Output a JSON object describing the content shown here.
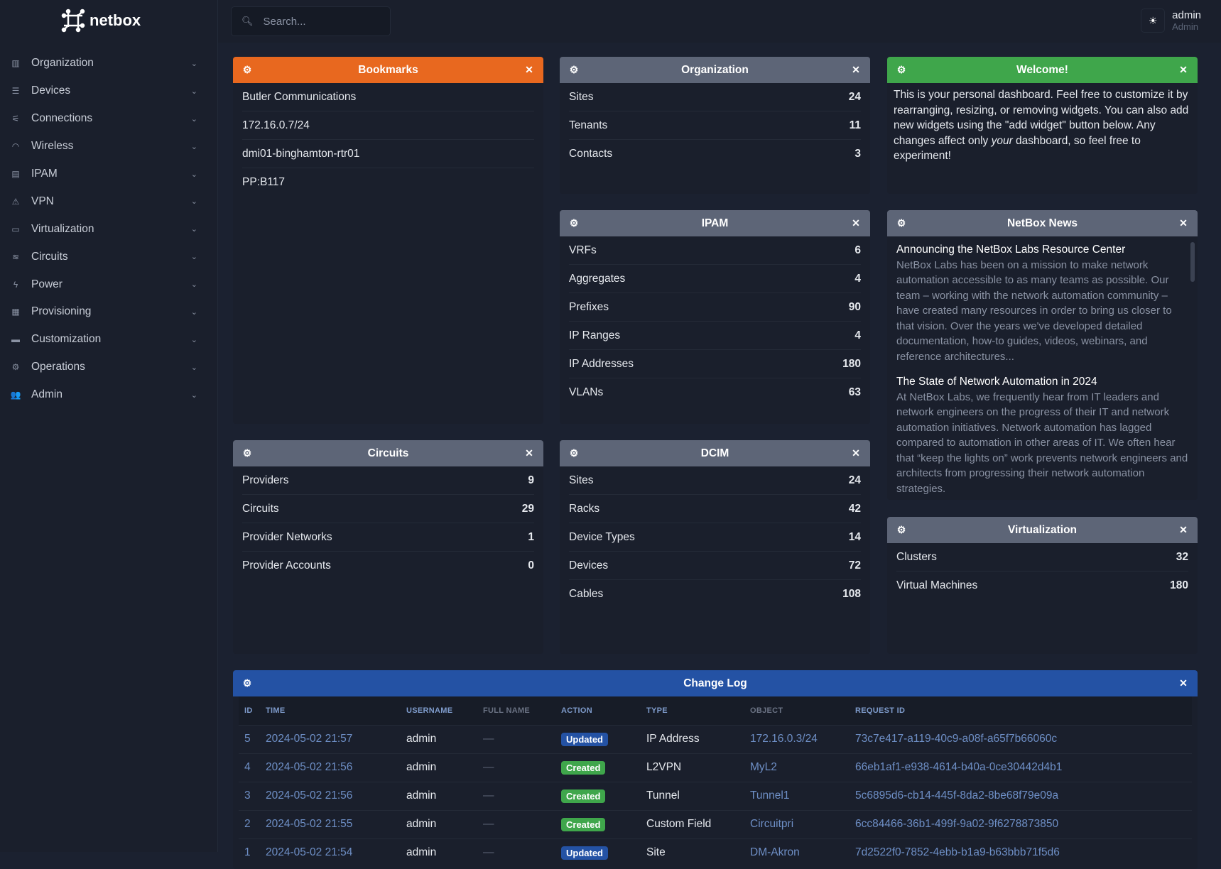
{
  "brand": {
    "name": "netbox"
  },
  "search": {
    "placeholder": "Search..."
  },
  "user": {
    "name": "admin",
    "role": "Admin"
  },
  "sidebar": {
    "items": [
      {
        "label": "Organization",
        "icon": "building-icon"
      },
      {
        "label": "Devices",
        "icon": "server-icon"
      },
      {
        "label": "Connections",
        "icon": "plug-icon"
      },
      {
        "label": "Wireless",
        "icon": "wifi-icon"
      },
      {
        "label": "IPAM",
        "icon": "counter-icon"
      },
      {
        "label": "VPN",
        "icon": "tunnel-icon"
      },
      {
        "label": "Virtualization",
        "icon": "monitor-icon"
      },
      {
        "label": "Circuits",
        "icon": "circuit-icon"
      },
      {
        "label": "Power",
        "icon": "flash-icon"
      },
      {
        "label": "Provisioning",
        "icon": "file-icon"
      },
      {
        "label": "Customization",
        "icon": "toolbox-icon"
      },
      {
        "label": "Operations",
        "icon": "cogs-icon"
      },
      {
        "label": "Admin",
        "icon": "users-icon"
      }
    ]
  },
  "widgets": {
    "bookmarks": {
      "title": "Bookmarks",
      "color": "#e8681f",
      "items": [
        "Butler Communications",
        "172.16.0.7/24",
        "dmi01-binghamton-rtr01",
        "PP:B117"
      ]
    },
    "organization": {
      "title": "Organization",
      "rows": [
        {
          "label": "Sites",
          "value": "24"
        },
        {
          "label": "Tenants",
          "value": "11"
        },
        {
          "label": "Contacts",
          "value": "3"
        }
      ]
    },
    "welcome": {
      "title": "Welcome!",
      "color": "#3fa64b",
      "text_before": "This is your personal dashboard. Feel free to customize it by rearranging, resizing, or removing widgets. You can also add new widgets using the \"add widget\" button below. Any changes affect only ",
      "text_em": "your",
      "text_after": " dashboard, so feel free to experiment!"
    },
    "ipam": {
      "title": "IPAM",
      "rows": [
        {
          "label": "VRFs",
          "value": "6"
        },
        {
          "label": "Aggregates",
          "value": "4"
        },
        {
          "label": "Prefixes",
          "value": "90"
        },
        {
          "label": "IP Ranges",
          "value": "4"
        },
        {
          "label": "IP Addresses",
          "value": "180"
        },
        {
          "label": "VLANs",
          "value": "63"
        }
      ]
    },
    "news": {
      "title": "NetBox News",
      "items": [
        {
          "title": "Announcing the NetBox Labs Resource Center",
          "body": "NetBox Labs has been on a mission to make network automation accessible to as many teams as possible. Our team – working with the network automation community – have created many resources in order to bring us closer to that vision. Over the years we've developed detailed documentation, how-to guides, videos, webinars, and reference architectures..."
        },
        {
          "title": "The State of Network Automation in 2024",
          "body": "At NetBox Labs, we frequently hear from IT leaders and network engineers on the progress of their IT and network automation initiatives. Network automation has lagged compared to automation in other areas of IT. We often hear that “keep the lights on” work prevents network engineers and architects from progressing their network automation strategies."
        }
      ]
    },
    "circuits": {
      "title": "Circuits",
      "rows": [
        {
          "label": "Providers",
          "value": "9"
        },
        {
          "label": "Circuits",
          "value": "29"
        },
        {
          "label": "Provider Networks",
          "value": "1"
        },
        {
          "label": "Provider Accounts",
          "value": "0"
        }
      ]
    },
    "dcim": {
      "title": "DCIM",
      "rows": [
        {
          "label": "Sites",
          "value": "24"
        },
        {
          "label": "Racks",
          "value": "42"
        },
        {
          "label": "Device Types",
          "value": "14"
        },
        {
          "label": "Devices",
          "value": "72"
        },
        {
          "label": "Cables",
          "value": "108"
        }
      ]
    },
    "virtualization": {
      "title": "Virtualization",
      "rows": [
        {
          "label": "Clusters",
          "value": "32"
        },
        {
          "label": "Virtual Machines",
          "value": "180"
        }
      ]
    },
    "changelog": {
      "title": "Change Log",
      "color": "#2452a4",
      "columns": [
        "ID",
        "TIME",
        "USERNAME",
        "FULL NAME",
        "ACTION",
        "TYPE",
        "OBJECT",
        "REQUEST ID"
      ],
      "rows": [
        {
          "id": "5",
          "time": "2024-05-02 21:57",
          "username": "admin",
          "fullname": "—",
          "action": "Updated",
          "type": "IP Address",
          "object": "172.16.0.3/24",
          "request_id": "73c7e417-a119-40c9-a08f-a65f7b66060c"
        },
        {
          "id": "4",
          "time": "2024-05-02 21:56",
          "username": "admin",
          "fullname": "—",
          "action": "Created",
          "type": "L2VPN",
          "object": "MyL2",
          "request_id": "66eb1af1-e938-4614-b40a-0ce30442d4b1"
        },
        {
          "id": "3",
          "time": "2024-05-02 21:56",
          "username": "admin",
          "fullname": "—",
          "action": "Created",
          "type": "Tunnel",
          "object": "Tunnel1",
          "request_id": "5c6895d6-cb14-445f-8da2-8be68f79e09a"
        },
        {
          "id": "2",
          "time": "2024-05-02 21:55",
          "username": "admin",
          "fullname": "—",
          "action": "Created",
          "type": "Custom Field",
          "object": "Circuitpri",
          "request_id": "6cc84466-36b1-499f-9a02-9f6278873850"
        },
        {
          "id": "1",
          "time": "2024-05-02 21:54",
          "username": "admin",
          "fullname": "—",
          "action": "Updated",
          "type": "Site",
          "object": "DM-Akron",
          "request_id": "7d2522f0-7852-4ebb-b1a9-b63bbb71f5d6"
        }
      ]
    },
    "action_colors": {
      "Updated": "#2452a4",
      "Created": "#3fa64b"
    }
  }
}
